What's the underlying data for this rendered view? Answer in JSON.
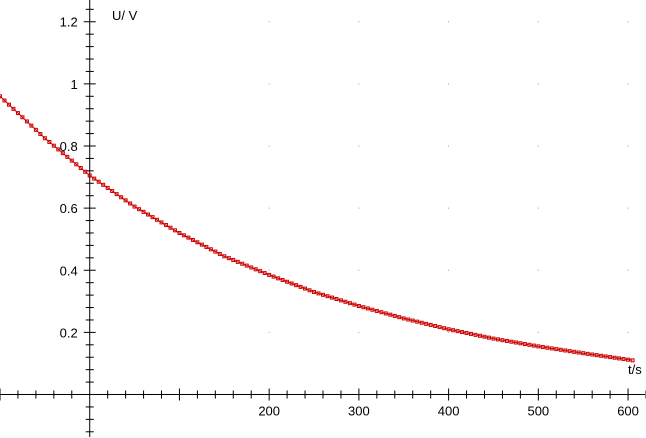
{
  "chart_data": {
    "type": "line",
    "xlabel": "t/s",
    "ylabel": "U/ V",
    "xlim": [
      -100,
      620
    ],
    "ylim": [
      -0.14,
      1.27
    ],
    "x_ticks": [
      200,
      300,
      400,
      500,
      600
    ],
    "y_ticks": [
      0.2,
      0.4,
      0.6,
      0.8,
      1,
      1.2
    ],
    "x_tick_labels": [
      "200",
      "300",
      "400",
      "500",
      "600"
    ],
    "y_tick_labels": [
      "0.2",
      "0.4",
      "0.6",
      "0.8",
      "1",
      "1.2"
    ],
    "grid": "dotted",
    "series": [
      {
        "color": "#cc0000",
        "marker": "square",
        "x": [
          -100,
          -50,
          0,
          50,
          100,
          150,
          200,
          250,
          300,
          350,
          400,
          450,
          500,
          550,
          605
        ],
        "y": [
          0.96,
          0.825,
          0.705,
          0.605,
          0.52,
          0.445,
          0.385,
          0.33,
          0.285,
          0.245,
          0.21,
          0.18,
          0.155,
          0.133,
          0.11
        ]
      }
    ]
  }
}
